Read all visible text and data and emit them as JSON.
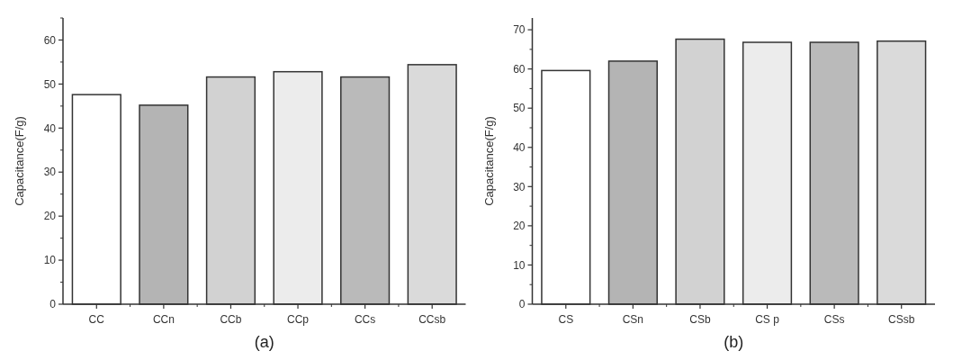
{
  "chart_data": [
    {
      "type": "bar",
      "title": "(a)",
      "ylabel": "Capacitance(F/g)",
      "categories": [
        "CC",
        "CCn",
        "CCb",
        "CCp",
        "CCs",
        "CCsb"
      ],
      "values": [
        47.6,
        45.2,
        51.6,
        52.8,
        51.6,
        54.4
      ],
      "colors": [
        "#ffffff",
        "#b4b4b4",
        "#d2d2d2",
        "#ececec",
        "#bababa",
        "#dadada"
      ],
      "ylim": [
        0,
        65
      ],
      "yticks": [
        0,
        10,
        20,
        30,
        40,
        50,
        60
      ],
      "grid": false
    },
    {
      "type": "bar",
      "title": "(b)",
      "ylabel": "Capacitance(F/g)",
      "categories": [
        "CS",
        "CSn",
        "CSb",
        "CS p",
        "CSs",
        "CSsb"
      ],
      "values": [
        59.6,
        62.0,
        67.6,
        66.8,
        66.8,
        67.1
      ],
      "colors": [
        "#ffffff",
        "#b4b4b4",
        "#d2d2d2",
        "#ececec",
        "#bababa",
        "#dadada"
      ],
      "ylim": [
        0,
        73
      ],
      "yticks": [
        0,
        10,
        20,
        30,
        40,
        50,
        60,
        70
      ],
      "grid": false
    }
  ]
}
